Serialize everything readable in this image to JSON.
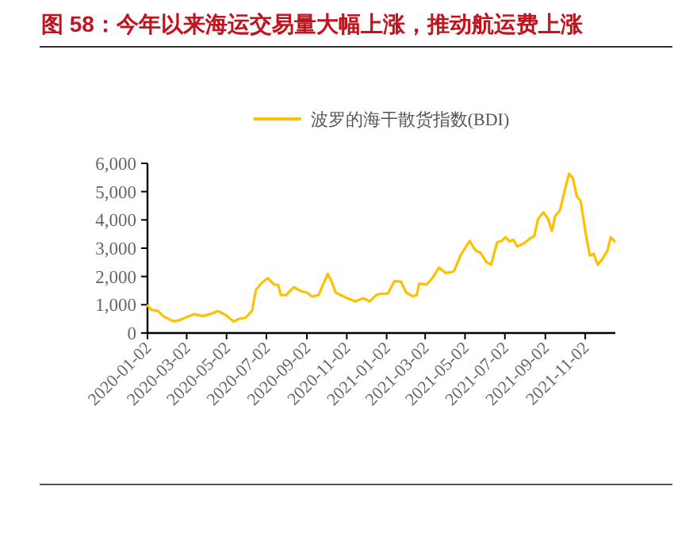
{
  "chart_data": {
    "type": "line",
    "title": "图 58：今年以来海运交易量大幅上涨，推动航运费上涨",
    "legend": "top",
    "grid": false,
    "marker": "none",
    "line_style": "solid",
    "xlim": [
      "2020-01-02",
      "2021-12-18"
    ],
    "xticks": [
      "2020-01-02",
      "2020-03-02",
      "2020-05-02",
      "2020-07-02",
      "2020-09-02",
      "2020-11-02",
      "2021-01-02",
      "2021-03-02",
      "2021-05-02",
      "2021-07-02",
      "2021-09-02",
      "2021-11-02"
    ],
    "ylim": [
      0,
      6000
    ],
    "yticks": [
      0,
      {
        "value": 1000,
        "label": "1,000"
      },
      {
        "value": 2000,
        "label": "2,000"
      },
      {
        "value": 3000,
        "label": "3,000"
      },
      {
        "value": 4000,
        "label": "4,000"
      },
      {
        "value": 5000,
        "label": "5,000"
      },
      {
        "value": 6000,
        "label": "6,000"
      }
    ],
    "x": [
      "2020-01-02",
      "2020-01-08",
      "2020-01-18",
      "2020-01-26",
      "2020-02-03",
      "2020-02-11",
      "2020-02-19",
      "2020-03-02",
      "2020-03-14",
      "2020-03-26",
      "2020-04-07",
      "2020-04-19",
      "2020-05-01",
      "2020-05-13",
      "2020-05-21",
      "2020-05-31",
      "2020-06-10",
      "2020-06-16",
      "2020-06-24",
      "2020-07-04",
      "2020-07-14",
      "2020-07-20",
      "2020-07-24",
      "2020-08-01",
      "2020-08-13",
      "2020-08-25",
      "2020-09-02",
      "2020-09-10",
      "2020-09-20",
      "2020-09-26",
      "2020-10-04",
      "2020-10-10",
      "2020-10-16",
      "2020-10-24",
      "2020-11-05",
      "2020-11-15",
      "2020-11-27",
      "2020-12-07",
      "2020-12-17",
      "2020-12-22",
      "2021-01-04",
      "2021-01-14",
      "2021-01-24",
      "2021-02-01",
      "2021-02-11",
      "2021-02-17",
      "2021-02-21",
      "2021-03-04",
      "2021-03-13",
      "2021-03-23",
      "2021-04-03",
      "2021-04-15",
      "2021-04-25",
      "2021-05-09",
      "2021-05-18",
      "2021-05-26",
      "2021-06-04",
      "2021-06-11",
      "2021-06-20",
      "2021-06-27",
      "2021-07-03",
      "2021-07-09",
      "2021-07-15",
      "2021-07-21",
      "2021-07-31",
      "2021-08-10",
      "2021-08-16",
      "2021-08-22",
      "2021-08-30",
      "2021-09-06",
      "2021-09-12",
      "2021-09-17",
      "2021-09-24",
      "2021-09-30",
      "2021-10-08",
      "2021-10-14",
      "2021-10-20",
      "2021-10-26",
      "2021-11-03",
      "2021-11-09",
      "2021-11-15",
      "2021-11-21",
      "2021-11-28",
      "2021-12-06",
      "2021-12-11",
      "2021-12-17"
    ],
    "series": [
      {
        "name": "波罗的海干散货指数(BDI)",
        "color": "#ffc000",
        "values": [
          970,
          820,
          780,
          600,
          500,
          410,
          450,
          560,
          670,
          600,
          670,
          780,
          630,
          410,
          500,
          540,
          780,
          1530,
          1750,
          1940,
          1710,
          1710,
          1340,
          1340,
          1620,
          1470,
          1430,
          1290,
          1340,
          1680,
          2090,
          1810,
          1430,
          1340,
          1210,
          1120,
          1230,
          1120,
          1340,
          1380,
          1400,
          1840,
          1810,
          1430,
          1300,
          1340,
          1750,
          1710,
          1940,
          2310,
          2120,
          2180,
          2740,
          3260,
          2920,
          2830,
          2500,
          2420,
          3200,
          3260,
          3390,
          3240,
          3300,
          3060,
          3170,
          3350,
          3430,
          4040,
          4270,
          4040,
          3610,
          4140,
          4320,
          4880,
          5630,
          5480,
          4840,
          4660,
          3480,
          2740,
          2800,
          2420,
          2610,
          2920,
          3390,
          3240
        ]
      }
    ]
  }
}
